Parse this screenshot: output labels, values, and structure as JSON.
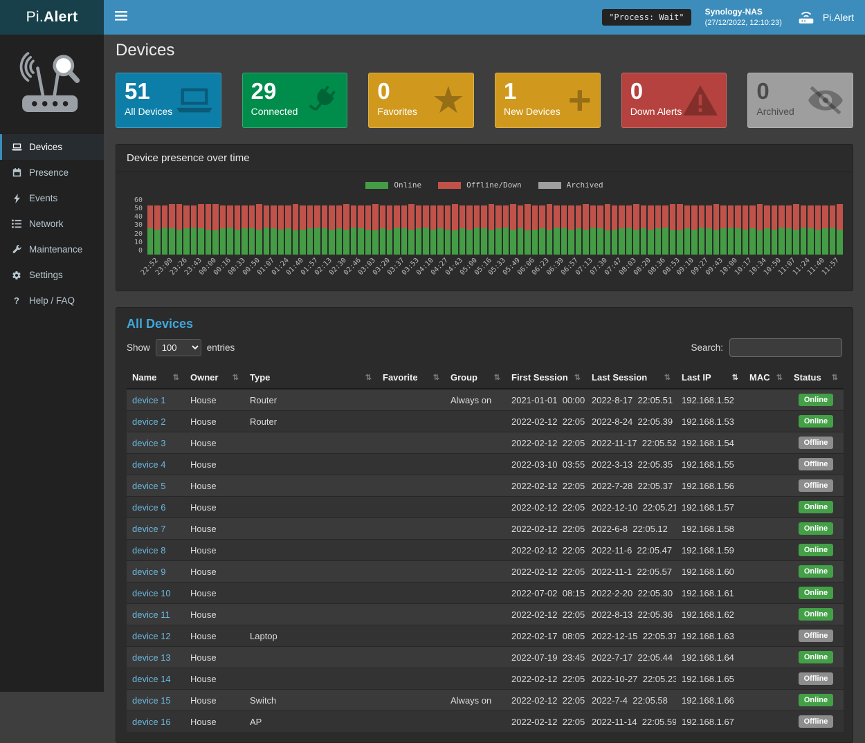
{
  "header": {
    "logo_prefix": "Pi.",
    "logo_suffix": "Alert",
    "process_status": "\"Process: Wait\"",
    "device_name": "Synology-NAS",
    "timestamp": "(27/12/2022, 12:10:23)",
    "user_label": "Pi.Alert"
  },
  "sidebar": {
    "items": [
      {
        "label": "Devices",
        "icon": "laptop-icon",
        "active": true
      },
      {
        "label": "Presence",
        "icon": "calendar-icon",
        "active": false
      },
      {
        "label": "Events",
        "icon": "bolt-icon",
        "active": false
      },
      {
        "label": "Network",
        "icon": "network-icon",
        "active": false
      },
      {
        "label": "Maintenance",
        "icon": "wrench-icon",
        "active": false
      },
      {
        "label": "Settings",
        "icon": "gear-icon",
        "active": false
      },
      {
        "label": "Help / FAQ",
        "icon": "question-icon",
        "active": false
      }
    ]
  },
  "page": {
    "title": "Devices"
  },
  "cards": [
    {
      "value": "51",
      "label": "All Devices",
      "color": "#0d7ea8",
      "icon": "laptop-icon",
      "muted": false
    },
    {
      "value": "29",
      "label": "Connected",
      "color": "#008d4c",
      "icon": "plug-icon",
      "muted": false
    },
    {
      "value": "0",
      "label": "Favorites",
      "color": "#d0991e",
      "icon": "star-icon",
      "muted": false
    },
    {
      "value": "1",
      "label": "New Devices",
      "color": "#d0991e",
      "icon": "plus-icon",
      "muted": false
    },
    {
      "value": "0",
      "label": "Down Alerts",
      "color": "#b5423e",
      "icon": "warning-icon",
      "muted": false
    },
    {
      "value": "0",
      "label": "Archived",
      "color": "#9e9e9e",
      "icon": "eye-slash-icon",
      "muted": true
    }
  ],
  "chart_data": {
    "type": "bar",
    "stacked": true,
    "title": "Device presence over time",
    "ylim": [
      0,
      60
    ],
    "yticks": [
      0,
      10,
      20,
      30,
      40,
      50,
      60
    ],
    "legend_position": "top",
    "x_labels": [
      "22:52",
      "23:09",
      "23:26",
      "23:43",
      "00:00",
      "00:16",
      "00:33",
      "00:50",
      "01:07",
      "01:24",
      "01:40",
      "01:57",
      "02:13",
      "02:30",
      "02:46",
      "03:03",
      "03:20",
      "03:37",
      "03:53",
      "04:10",
      "04:27",
      "04:43",
      "05:00",
      "05:16",
      "05:33",
      "05:49",
      "06:06",
      "06:23",
      "06:39",
      "06:57",
      "07:13",
      "07:30",
      "07:47",
      "08:03",
      "08:20",
      "08:36",
      "08:53",
      "09:10",
      "09:27",
      "09:43",
      "10:00",
      "10:17",
      "10:34",
      "10:50",
      "11:07",
      "11:24",
      "11:40",
      "11:57"
    ],
    "bars_per_label": 2,
    "series": [
      {
        "name": "Online",
        "color": "#449d44",
        "values": [
          27,
          26,
          28,
          27,
          26,
          27,
          28,
          27,
          26,
          25,
          27,
          28,
          26,
          27,
          27,
          26,
          28,
          27,
          26,
          27,
          25,
          26,
          27,
          28,
          27,
          26,
          27,
          26,
          28,
          27,
          26,
          25,
          27,
          26,
          28,
          27,
          26,
          27,
          28,
          26,
          27,
          26,
          25,
          27,
          26,
          28,
          27,
          26,
          27,
          28,
          26,
          27,
          25,
          26,
          27,
          26,
          28,
          27,
          26,
          27,
          26,
          28,
          27,
          25,
          26,
          27,
          28,
          26,
          27,
          26,
          27,
          28,
          26,
          25,
          27,
          26,
          28,
          27,
          26,
          27,
          28,
          27,
          26,
          27,
          25,
          27,
          26,
          28,
          27,
          26,
          28,
          27,
          26,
          27,
          28,
          26
        ]
      },
      {
        "name": "Offline/Down",
        "color": "#c0524a",
        "values": [
          24,
          25,
          23,
          25,
          26,
          24,
          23,
          25,
          26,
          27,
          24,
          23,
          25,
          24,
          24,
          26,
          23,
          24,
          25,
          24,
          27,
          25,
          24,
          23,
          24,
          25,
          24,
          26,
          23,
          24,
          25,
          27,
          24,
          25,
          23,
          24,
          26,
          24,
          23,
          25,
          24,
          25,
          27,
          24,
          25,
          23,
          24,
          26,
          24,
          23,
          26,
          24,
          27,
          25,
          24,
          26,
          23,
          24,
          25,
          24,
          26,
          23,
          24,
          27,
          25,
          24,
          23,
          26,
          24,
          25,
          24,
          23,
          26,
          27,
          24,
          25,
          23,
          24,
          26,
          24,
          23,
          24,
          25,
          24,
          27,
          24,
          25,
          23,
          24,
          26,
          23,
          24,
          25,
          24,
          23,
          26
        ]
      },
      {
        "name": "Archived",
        "color": "#9e9e9e",
        "values": []
      }
    ]
  },
  "table": {
    "title": "All Devices",
    "show_label": "Show",
    "entries_label": "entries",
    "page_length": "100",
    "search_label": "Search:",
    "search_value": "",
    "columns": [
      {
        "label": "Name",
        "sorted": false
      },
      {
        "label": "Owner",
        "sorted": false
      },
      {
        "label": "Type",
        "sorted": false
      },
      {
        "label": "Favorite",
        "sorted": false
      },
      {
        "label": "Group",
        "sorted": false
      },
      {
        "label": "First Session",
        "sorted": false
      },
      {
        "label": "Last Session",
        "sorted": false
      },
      {
        "label": "Last IP",
        "sorted": true
      },
      {
        "label": "MAC",
        "sorted": false
      },
      {
        "label": "Status",
        "sorted": false
      }
    ],
    "rows": [
      [
        "device 1",
        "House",
        "Router",
        "",
        "Always on",
        "2021-01-01  00:00",
        "2022-8-17  22:05.51",
        "192.168.1.52",
        "",
        "Online"
      ],
      [
        "device 2",
        "House",
        "Router",
        "",
        "",
        "2022-02-12  22:05",
        "2022-8-24  22:05.39",
        "192.168.1.53",
        "",
        "Online"
      ],
      [
        "device 3",
        "House",
        "",
        "",
        "",
        "2022-02-12  22:05",
        "2022-11-17  22:05.52",
        "192.168.1.54",
        "",
        "Offline"
      ],
      [
        "device 4",
        "House",
        "",
        "",
        "",
        "2022-03-10  03:55",
        "2022-3-13  22:05.35",
        "192.168.1.55",
        "",
        "Offline"
      ],
      [
        "device 5",
        "House",
        "",
        "",
        "",
        "2022-02-12  22:05",
        "2022-7-28  22:05.37",
        "192.168.1.56",
        "",
        "Offline"
      ],
      [
        "device 6",
        "House",
        "",
        "",
        "",
        "2022-02-12  22:05",
        "2022-12-10  22:05.21",
        "192.168.1.57",
        "",
        "Online"
      ],
      [
        "device 7",
        "House",
        "",
        "",
        "",
        "2022-02-12  22:05",
        "2022-6-8  22:05.12",
        "192.168.1.58",
        "",
        "Online"
      ],
      [
        "device 8",
        "House",
        "",
        "",
        "",
        "2022-02-12  22:05",
        "2022-11-6  22:05.47",
        "192.168.1.59",
        "",
        "Online"
      ],
      [
        "device 9",
        "House",
        "",
        "",
        "",
        "2022-02-12  22:05",
        "2022-11-1  22:05.57",
        "192.168.1.60",
        "",
        "Online"
      ],
      [
        "device 10",
        "House",
        "",
        "",
        "",
        "2022-07-02  08:15",
        "2022-2-20  22:05.30",
        "192.168.1.61",
        "",
        "Online"
      ],
      [
        "device 11",
        "House",
        "",
        "",
        "",
        "2022-02-12  22:05",
        "2022-8-13  22:05.36",
        "192.168.1.62",
        "",
        "Online"
      ],
      [
        "device 12",
        "House",
        "Laptop",
        "",
        "",
        "2022-02-17  08:05",
        "2022-12-15  22:05.37",
        "192.168.1.63",
        "",
        "Offline"
      ],
      [
        "device 13",
        "House",
        "",
        "",
        "",
        "2022-07-19  23:45",
        "2022-7-17  22:05.44",
        "192.168.1.64",
        "",
        "Online"
      ],
      [
        "device 14",
        "House",
        "",
        "",
        "",
        "2022-02-12  22:05",
        "2022-10-27  22:05.23",
        "192.168.1.65",
        "",
        "Offline"
      ],
      [
        "device 15",
        "House",
        "Switch",
        "",
        "Always on",
        "2022-02-12  22:05",
        "2022-7-4  22:05.58",
        "192.168.1.66",
        "",
        "Online"
      ],
      [
        "device 16",
        "House",
        "AP",
        "",
        "",
        "2022-02-12  22:05",
        "2022-11-14  22:05.59",
        "192.168.1.67",
        "",
        "Offline"
      ]
    ]
  }
}
